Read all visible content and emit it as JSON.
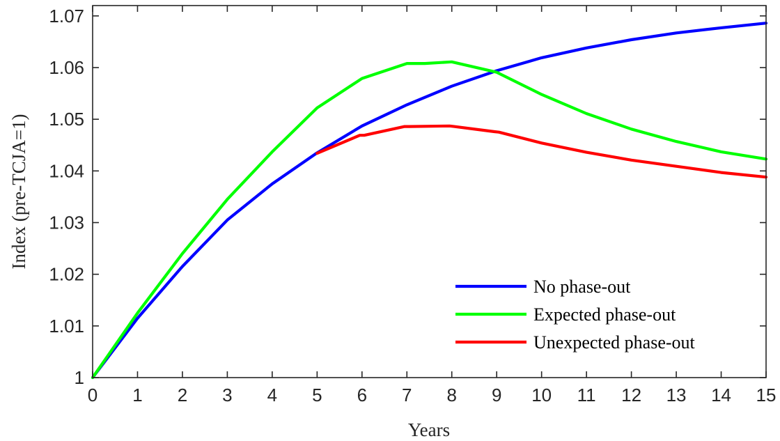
{
  "chart_data": {
    "type": "line",
    "title": "",
    "xlabel": "Years",
    "ylabel": "Index (pre-TCJA=1)",
    "xlim": [
      0,
      15
    ],
    "ylim": [
      1.0,
      1.072
    ],
    "xticks": [
      0,
      1,
      2,
      3,
      4,
      5,
      6,
      7,
      8,
      9,
      10,
      11,
      12,
      13,
      14,
      15
    ],
    "xtick_labels": [
      "0",
      "1",
      "2",
      "3",
      "4",
      "5",
      "6",
      "7",
      "8",
      "9",
      "10",
      "11",
      "12",
      "13",
      "14",
      "15"
    ],
    "yticks": [
      1.0,
      1.01,
      1.02,
      1.03,
      1.04,
      1.05,
      1.06,
      1.07
    ],
    "ytick_labels": [
      "1",
      "1.01",
      "1.02",
      "1.03",
      "1.04",
      "1.05",
      "1.06",
      "1.07"
    ],
    "grid": false,
    "legend_position": "bottom-right",
    "series": [
      {
        "name": "No phase-out",
        "color": "#0000ff",
        "x": [
          0,
          1,
          2,
          3,
          4,
          5,
          6,
          7,
          8,
          9,
          10,
          11,
          12,
          13,
          14,
          15
        ],
        "y": [
          1.0,
          1.0115,
          1.0215,
          1.0305,
          1.0375,
          1.0435,
          1.0487,
          1.0528,
          1.0564,
          1.0594,
          1.0619,
          1.0638,
          1.0654,
          1.0667,
          1.0677,
          1.0686
        ]
      },
      {
        "name": "Expected phase-out",
        "color": "#00ff00",
        "x": [
          0,
          1,
          2,
          3,
          4,
          5,
          6,
          7,
          7.4,
          8,
          9,
          10,
          11,
          12,
          13,
          14,
          15
        ],
        "y": [
          1.0,
          1.0125,
          1.024,
          1.0345,
          1.0437,
          1.0522,
          1.0579,
          1.0608,
          1.0608,
          1.0611,
          1.0591,
          1.0548,
          1.0511,
          1.0481,
          1.0457,
          1.0437,
          1.0423
        ]
      },
      {
        "name": "Unexpected phase-out",
        "color": "#ff0000",
        "x": [
          5,
          5.95,
          6.05,
          6.95,
          7.05,
          7.95,
          8.05,
          8.95,
          9.05,
          10,
          11,
          12,
          13,
          14,
          15
        ],
        "y": [
          1.0434,
          1.0469,
          1.0469,
          1.0486,
          1.0486,
          1.0487,
          1.0486,
          1.0476,
          1.0475,
          1.0454,
          1.0436,
          1.0421,
          1.0409,
          1.0397,
          1.0388
        ]
      }
    ]
  }
}
